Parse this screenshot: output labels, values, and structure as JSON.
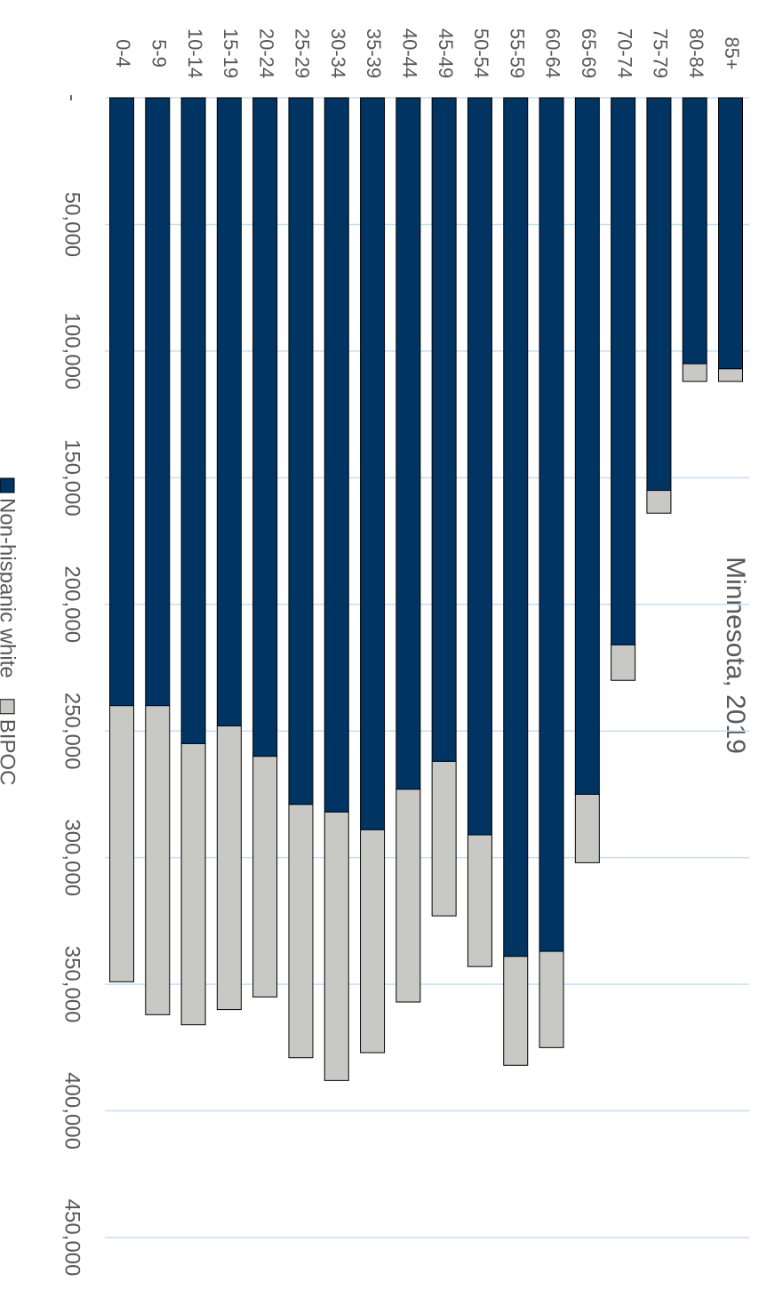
{
  "chart_data": {
    "type": "stacked_bar",
    "title": "Minnesota, 2019",
    "categories": [
      "0-4",
      "5-9",
      "10-14",
      "15-19",
      "20-24",
      "25-29",
      "30-34",
      "35-39",
      "40-44",
      "45-49",
      "50-54",
      "55-59",
      "60-64",
      "65-69",
      "70-74",
      "75-79",
      "80-84",
      "85+"
    ],
    "series": [
      {
        "name": "Non-hispanic white",
        "color": "#003462",
        "values": [
          240000,
          240000,
          255000,
          248000,
          260000,
          279000,
          282000,
          289000,
          273000,
          262000,
          291000,
          339000,
          337000,
          275000,
          216000,
          155000,
          105000,
          107000
        ]
      },
      {
        "name": "BIPOC",
        "color": "#c8c8c4",
        "values": [
          109000,
          122000,
          111000,
          112000,
          95000,
          100000,
          106000,
          88000,
          84000,
          61000,
          52000,
          43000,
          38000,
          27000,
          14000,
          9000,
          7000,
          5000
        ]
      }
    ],
    "ylim": [
      0,
      450000
    ],
    "yticks": [
      {
        "value": 0,
        "label": "-"
      },
      {
        "value": 50000,
        "label": "50,000"
      },
      {
        "value": 100000,
        "label": "100,000"
      },
      {
        "value": 150000,
        "label": "150,000"
      },
      {
        "value": 200000,
        "label": "200,000"
      },
      {
        "value": 250000,
        "label": "250,000"
      },
      {
        "value": 300000,
        "label": "300,000"
      },
      {
        "value": 350000,
        "label": "350,000"
      },
      {
        "value": 400000,
        "label": "400,000"
      },
      {
        "value": 450000,
        "label": "450,000"
      }
    ],
    "grid": true,
    "legend": "bottom"
  }
}
